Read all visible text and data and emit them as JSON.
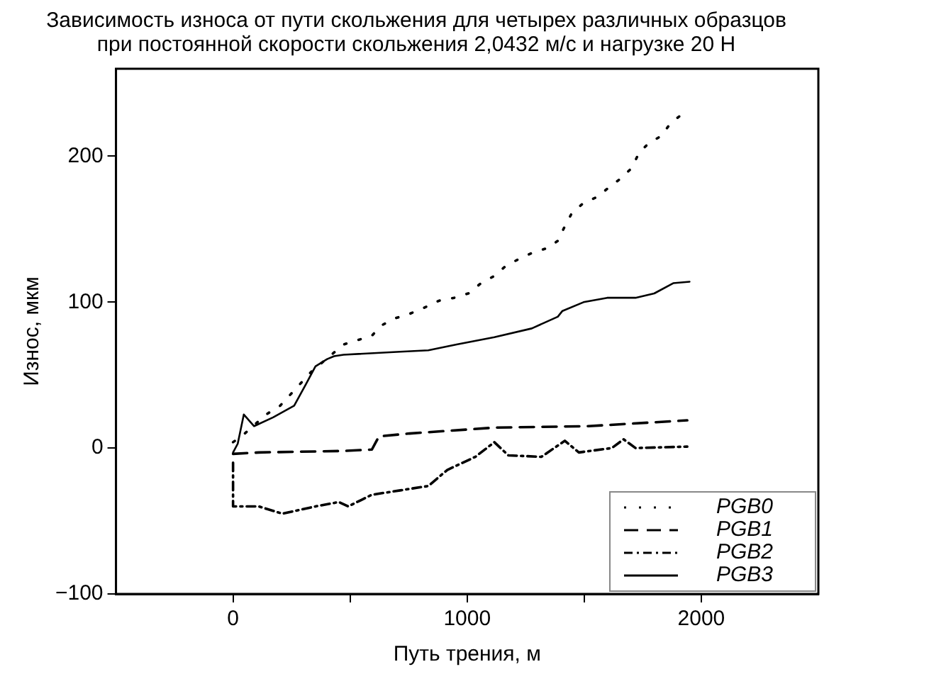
{
  "chart_data": {
    "type": "line",
    "title": "Зависимость износа от пути скольжения для четырех различных образцов\nпри постоянной скорости скольжения 2,0432 м/с и нагрузке 20 Н",
    "xlabel": "Путь трения, м",
    "ylabel": "Износ, мкм",
    "xlim": [
      -500,
      2500
    ],
    "xticks": [
      0,
      {
        "value": 500,
        "label": null
      },
      1000,
      {
        "value": 1500,
        "label": null
      },
      2000
    ],
    "ylim": [
      -100,
      260
    ],
    "yticks": [
      -100,
      0,
      100,
      200
    ],
    "grid": false,
    "legend": "bottom right",
    "marker": "none",
    "series": [
      {
        "name": "PGB0",
        "color": "#000000",
        "line_style": "dotted",
        "x": [
          0,
          50,
          141,
          201,
          281,
          332,
          472,
          593,
          633,
          693,
          754,
          814,
          880,
          945,
          1005,
          1059,
          1116,
          1166,
          1226,
          1281,
          1341,
          1387,
          1417,
          1447,
          1497,
          1554,
          1608,
          1658,
          1703,
          1733,
          1775,
          1830,
          1870,
          1920
        ],
        "values": [
          4,
          10,
          23,
          29,
          43,
          52,
          71,
          77,
          84,
          89,
          92,
          96,
          101,
          103,
          106,
          113,
          118,
          125,
          130,
          134,
          137,
          142,
          152,
          161,
          168,
          172,
          179,
          185,
          192,
          202,
          209,
          214,
          223,
          229
        ]
      },
      {
        "name": "PGB1",
        "color": "#000000",
        "line_style": "dashed",
        "x": [
          0,
          110,
          472,
          593,
          623,
          754,
          1116,
          1518,
          1940
        ],
        "values": [
          -4,
          -3,
          -2,
          -1,
          8,
          10,
          14,
          15,
          19
        ]
      },
      {
        "name": "PGB2",
        "color": "#000000",
        "line_style": "dashdot",
        "x": [
          0,
          0,
          110,
          211,
          352,
          452,
          492,
          593,
          714,
          834,
          915,
          1035,
          1116,
          1176,
          1317,
          1417,
          1477,
          1618,
          1668,
          1719,
          1940
        ],
        "values": [
          -10,
          -40,
          -40,
          -45,
          -40,
          -37,
          -40,
          -32,
          -29,
          -26,
          -15,
          -6,
          4,
          -5,
          -6,
          5,
          -3,
          0,
          6,
          0,
          1
        ]
      },
      {
        "name": "PGB3",
        "color": "#000000",
        "line_style": "solid",
        "x": [
          0,
          20,
          46,
          90,
          171,
          261,
          312,
          352,
          402,
          432,
          472,
          714,
          834,
          955,
          1116,
          1276,
          1387,
          1407,
          1497,
          1598,
          1719,
          1799,
          1880,
          1950
        ],
        "values": [
          -3,
          3,
          23,
          15,
          21,
          29,
          44,
          56,
          61,
          63,
          64,
          66,
          67,
          71,
          76,
          82,
          90,
          94,
          100,
          103,
          103,
          106,
          113,
          114
        ]
      }
    ]
  }
}
